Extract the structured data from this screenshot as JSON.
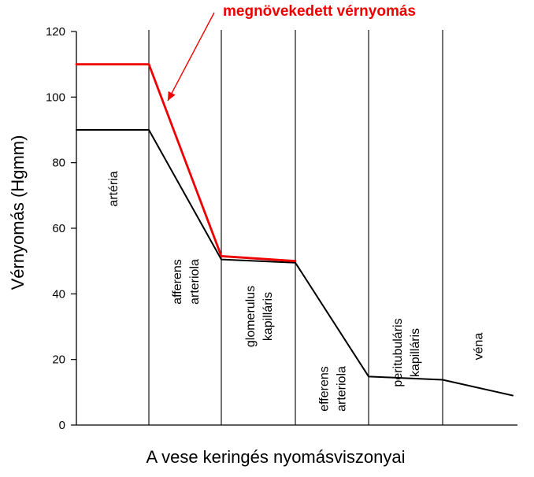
{
  "chart_data": {
    "type": "line",
    "title": "",
    "ylabel": "Vérnyomás (Hgmm)",
    "xlabel": "A vese keringés nyomásviszonyai",
    "ylim": [
      0,
      120
    ],
    "yticks": [
      0,
      20,
      40,
      60,
      80,
      100,
      120
    ],
    "grid": false,
    "segments": [
      {
        "label": "artéria",
        "label_lines": [
          "artéria"
        ],
        "start": 0,
        "end": 1
      },
      {
        "label": "afferens arteriola",
        "label_lines": [
          "afferens",
          "arteriola"
        ],
        "start": 1,
        "end": 2
      },
      {
        "label": "glomerulus kapilláris",
        "label_lines": [
          "glomerulus",
          "kapilláris"
        ],
        "start": 2,
        "end": 3
      },
      {
        "label": "efferens arteriola",
        "label_lines": [
          "efferens",
          "arteriola"
        ],
        "start": 3,
        "end": 4
      },
      {
        "label": "peritubuláris kapilláris",
        "label_lines": [
          "peritubuláris",
          "kapilláris"
        ],
        "start": 4,
        "end": 5
      },
      {
        "label": "véna",
        "label_lines": [
          "véna"
        ],
        "start": 5,
        "end": 6
      }
    ],
    "series": [
      {
        "color": "#000000",
        "x": [
          0,
          1,
          2,
          3,
          4,
          5,
          6
        ],
        "values": [
          90,
          90,
          50.5,
          49.5,
          14.8,
          13.8,
          9
        ]
      },
      {
        "name": "megnövekedett vérnyomás",
        "color": "#ee0000",
        "x": [
          0,
          1,
          2,
          3
        ],
        "values": [
          110,
          110,
          51.5,
          50
        ]
      }
    ],
    "annotations": [
      {
        "text": "megnövekedett vérnyomás",
        "color": "#ee0000",
        "points_to_series": 1
      }
    ]
  }
}
